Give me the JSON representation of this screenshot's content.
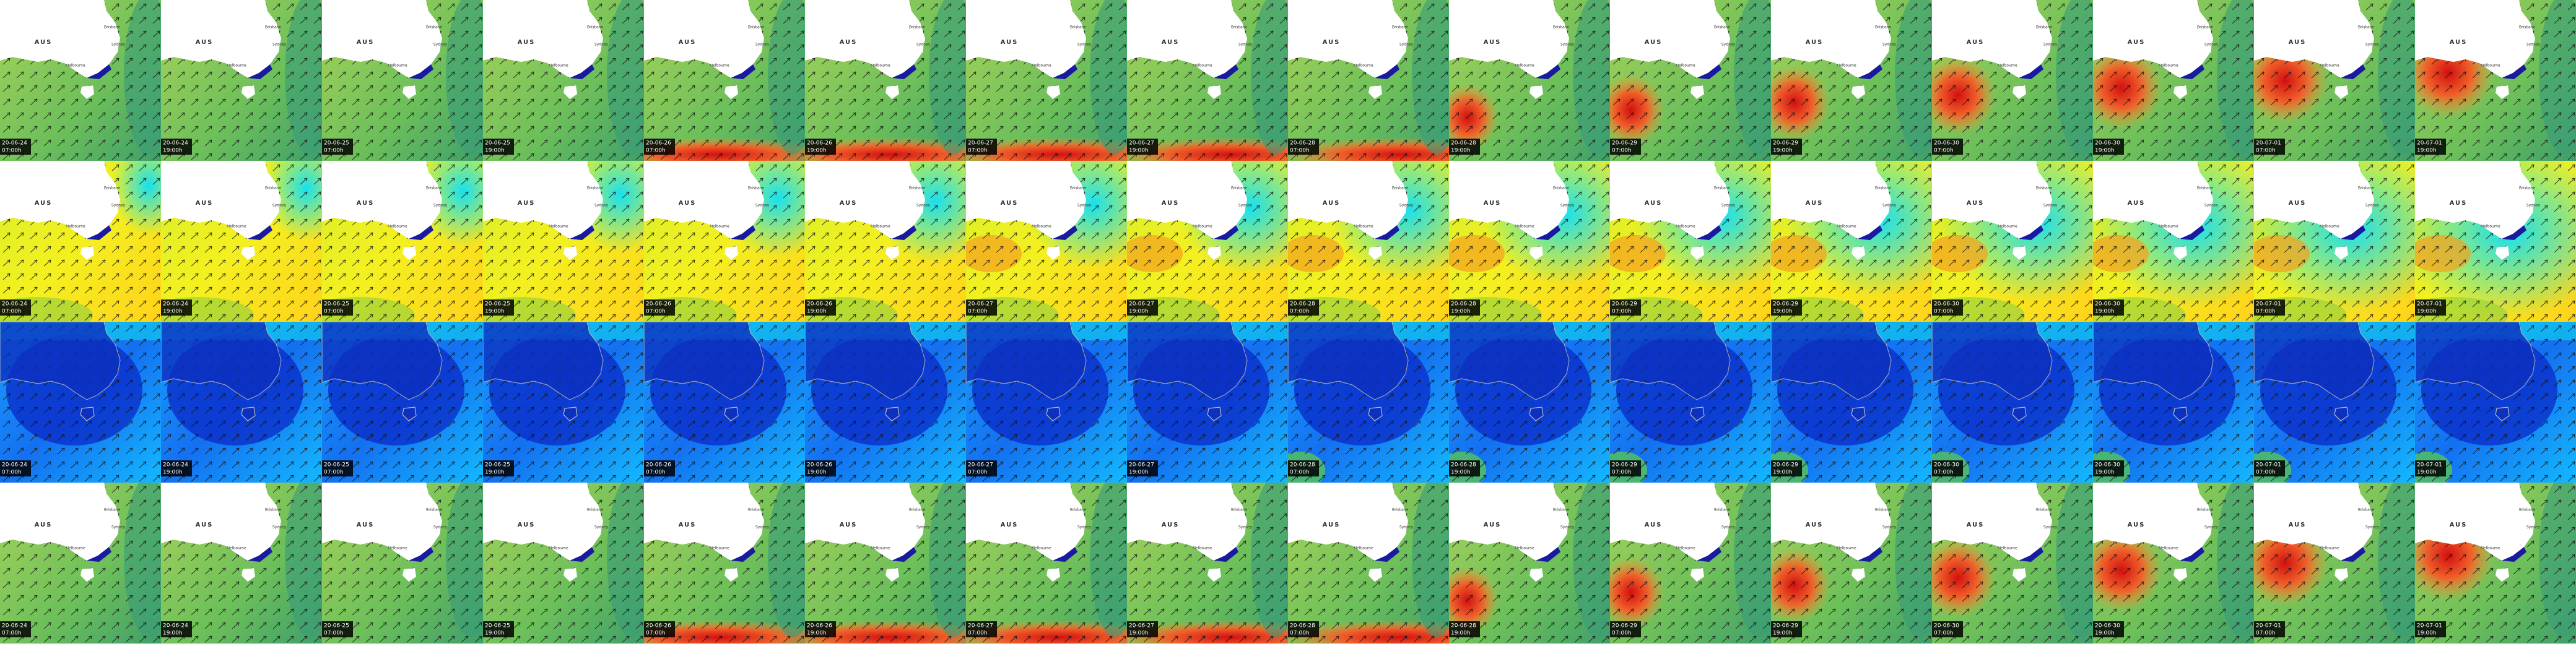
{
  "map_labels": {
    "country": "AUS",
    "cities": [
      "Brisbane",
      "Sydney",
      "Melbourne"
    ]
  },
  "frames": [
    {
      "date": "20-06-24",
      "time": "07:00h"
    },
    {
      "date": "20-06-24",
      "time": "19:00h"
    },
    {
      "date": "20-06-25",
      "time": "07:00h"
    },
    {
      "date": "20-06-25",
      "time": "19:00h"
    },
    {
      "date": "20-06-26",
      "time": "07:00h"
    },
    {
      "date": "20-06-26",
      "time": "19:00h"
    },
    {
      "date": "20-06-27",
      "time": "07:00h"
    },
    {
      "date": "20-06-27",
      "time": "19:00h"
    },
    {
      "date": "20-06-28",
      "time": "07:00h"
    },
    {
      "date": "20-06-28",
      "time": "19:00h"
    },
    {
      "date": "20-06-29",
      "time": "07:00h"
    },
    {
      "date": "20-06-29",
      "time": "19:00h"
    },
    {
      "date": "20-06-30",
      "time": "07:00h"
    },
    {
      "date": "20-06-30",
      "time": "19:00h"
    },
    {
      "date": "20-07-01",
      "time": "07:00h"
    },
    {
      "date": "20-07-01",
      "time": "19:00h"
    }
  ]
}
